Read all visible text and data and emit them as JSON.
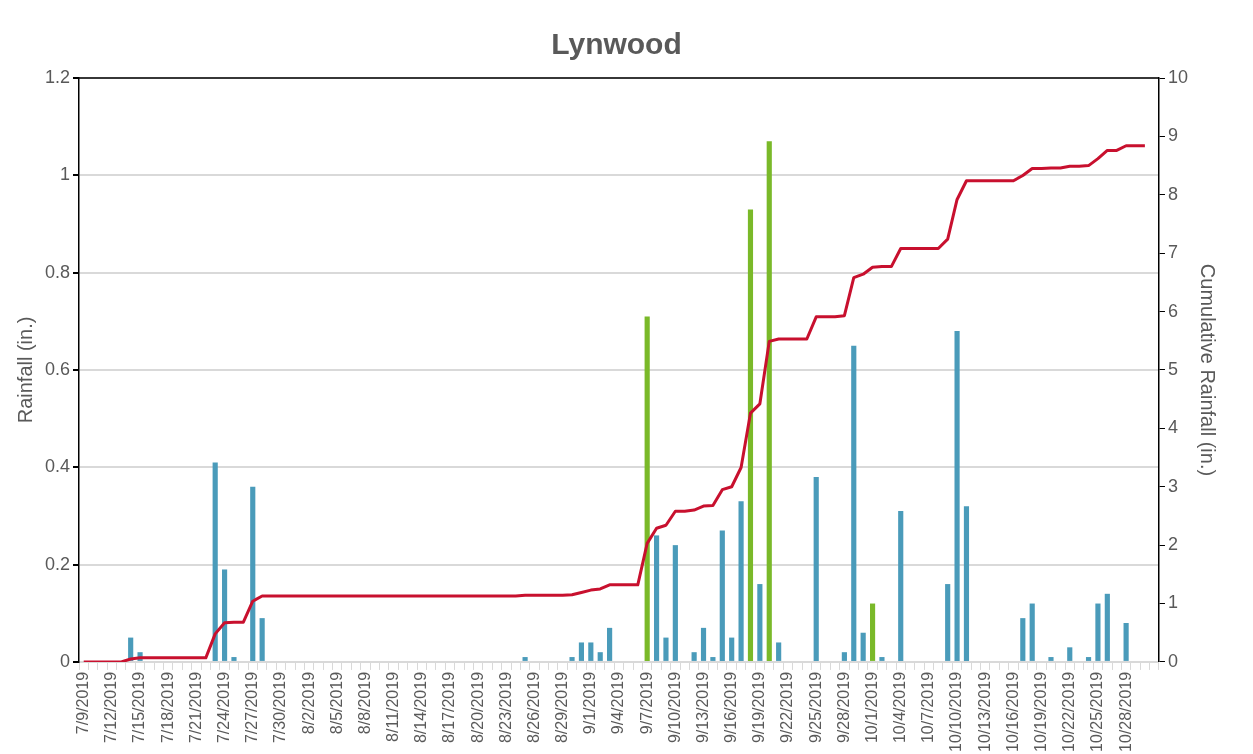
{
  "chart_data": {
    "type": "bar",
    "title": "Lynwood",
    "ylabel": "Rainfall (in.)",
    "y2label": "Cumulative Rainfall (in.)",
    "categories": [
      "7/9/2019",
      null,
      null,
      "7/12/2019",
      null,
      null,
      "7/15/2019",
      null,
      null,
      "7/18/2019",
      null,
      null,
      "7/21/2019",
      null,
      null,
      "7/24/2019",
      null,
      null,
      "7/27/2019",
      null,
      null,
      "7/30/2019",
      null,
      null,
      "8/2/2019",
      null,
      null,
      "8/5/2019",
      null,
      null,
      "8/8/2019",
      null,
      null,
      "8/11/2019",
      null,
      null,
      "8/14/2019",
      null,
      null,
      "8/17/2019",
      null,
      null,
      "8/20/2019",
      null,
      null,
      "8/23/2019",
      null,
      null,
      "8/26/2019",
      null,
      null,
      "8/29/2019",
      null,
      null,
      "9/1/2019",
      null,
      null,
      "9/4/2019",
      null,
      null,
      "9/7/2019",
      null,
      null,
      "9/10/2019",
      null,
      null,
      "9/13/2019",
      null,
      null,
      "9/16/2019",
      null,
      null,
      "9/19/2019",
      null,
      null,
      "9/22/2019",
      null,
      null,
      "9/25/2019",
      null,
      null,
      "9/28/2019",
      null,
      null,
      "10/1/2019",
      null,
      null,
      "10/4/2019",
      null,
      null,
      "10/7/2019",
      null,
      null,
      "10/10/2019",
      null,
      null,
      "10/13/2019",
      null,
      null,
      "10/16/2019",
      null,
      null,
      "10/19/2019",
      null,
      null,
      "10/22/2019",
      null,
      null,
      "10/25/2019",
      null,
      null,
      "10/28/2019",
      null,
      null,
      null
    ],
    "series": [
      {
        "colors": [
          "#4a9bba",
          "#4a9bba",
          "#4a9bba",
          "#4a9bba",
          "#4a9bba",
          "#4a9bba",
          "#4a9bba",
          "#4a9bba",
          "#4a9bba",
          "#4a9bba",
          "#4a9bba",
          "#4a9bba",
          "#4a9bba",
          "#4a9bba",
          "#4a9bba",
          "#4a9bba",
          "#4a9bba",
          "#4a9bba",
          "#4a9bba",
          "#4a9bba",
          "#4a9bba",
          "#4a9bba",
          "#4a9bba",
          "#4a9bba",
          "#4a9bba",
          "#4a9bba",
          "#4a9bba",
          "#4a9bba",
          "#4a9bba",
          "#4a9bba",
          "#4a9bba",
          "#4a9bba",
          "#4a9bba",
          "#4a9bba",
          "#4a9bba",
          "#4a9bba",
          "#4a9bba",
          "#4a9bba",
          "#4a9bba",
          "#4a9bba",
          "#4a9bba",
          "#4a9bba",
          "#4a9bba",
          "#4a9bba",
          "#4a9bba",
          "#4a9bba",
          "#4a9bba",
          "#4a9bba",
          "#4a9bba",
          "#4a9bba",
          "#4a9bba",
          "#4a9bba",
          "#4a9bba",
          "#4a9bba",
          "#4a9bba",
          "#4a9bba",
          "#4a9bba",
          "#4a9bba",
          "#4a9bba",
          "#4a9bba",
          "#7ab929",
          "#4a9bba",
          "#4a9bba",
          "#4a9bba",
          "#4a9bba",
          "#4a9bba",
          "#4a9bba",
          "#4a9bba",
          "#4a9bba",
          "#4a9bba",
          "#4a9bba",
          "#7ab929",
          "#4a9bba",
          "#7ab929",
          "#4a9bba",
          "#4a9bba",
          "#4a9bba",
          "#4a9bba",
          "#4a9bba",
          "#4a9bba",
          "#4a9bba",
          "#4a9bba",
          "#4a9bba",
          "#4a9bba",
          "#7ab929",
          "#4a9bba",
          "#4a9bba",
          "#4a9bba",
          "#4a9bba",
          "#4a9bba",
          "#4a9bba",
          "#4a9bba",
          "#4a9bba",
          "#4a9bba",
          "#4a9bba",
          "#4a9bba",
          "#4a9bba",
          "#4a9bba",
          "#4a9bba",
          "#4a9bba",
          "#4a9bba",
          "#4a9bba",
          "#4a9bba",
          "#4a9bba",
          "#4a9bba",
          "#4a9bba",
          "#4a9bba",
          "#4a9bba",
          "#4a9bba",
          "#4a9bba",
          "#4a9bba",
          "#4a9bba",
          "#4a9bba",
          "#4a9bba",
          "#4a9bba"
        ],
        "values": [
          0,
          0,
          0,
          0,
          0,
          0.05,
          0.02,
          0,
          0,
          0,
          0,
          0,
          0,
          0,
          0.41,
          0.19,
          0.01,
          0,
          0.36,
          0.09,
          0,
          0,
          0,
          0,
          0,
          0,
          0,
          0,
          0,
          0,
          0,
          0,
          0,
          0,
          0,
          0,
          0,
          0,
          0,
          0,
          0,
          0,
          0,
          0,
          0,
          0,
          0,
          0.01,
          0,
          0,
          0,
          0,
          0.01,
          0.04,
          0.04,
          0.02,
          0.07,
          0,
          0,
          0,
          0.71,
          0.26,
          0.05,
          0.24,
          0,
          0.02,
          0.07,
          0.01,
          0.27,
          0.05,
          0.33,
          0.93,
          0.16,
          1.07,
          0.04,
          0,
          0,
          0,
          0.38,
          0,
          0,
          0.02,
          0.65,
          0.06,
          0.12,
          0.01,
          0,
          0.31,
          0,
          0,
          0,
          0,
          0.16,
          0.68,
          0.32,
          0,
          0,
          0,
          0,
          0,
          0.09,
          0.12,
          0,
          0.01,
          0,
          0.03,
          0,
          0.01,
          0.12,
          0.14,
          0,
          0.08,
          0,
          0,
          null
        ]
      },
      {
        "type": "line",
        "axis": "y2",
        "color": "#c8102e",
        "values": [
          0,
          0,
          0,
          0,
          0,
          0.05,
          0.07,
          0.07,
          0.07,
          0.07,
          0.07,
          0.07,
          0.07,
          0.07,
          0.48,
          0.67,
          0.68,
          0.68,
          1.04,
          1.13,
          1.13,
          1.13,
          1.13,
          1.13,
          1.13,
          1.13,
          1.13,
          1.13,
          1.13,
          1.13,
          1.13,
          1.13,
          1.13,
          1.13,
          1.13,
          1.13,
          1.13,
          1.13,
          1.13,
          1.13,
          1.13,
          1.13,
          1.13,
          1.13,
          1.13,
          1.13,
          1.13,
          1.14,
          1.14,
          1.14,
          1.14,
          1.14,
          1.15,
          1.19,
          1.23,
          1.25,
          1.32,
          1.32,
          1.32,
          1.32,
          2.03,
          2.29,
          2.34,
          2.58,
          2.58,
          2.6,
          2.67,
          2.68,
          2.95,
          3.0,
          3.33,
          4.26,
          4.42,
          5.49,
          5.53,
          5.53,
          5.53,
          5.53,
          5.91,
          5.91,
          5.91,
          5.93,
          6.58,
          6.64,
          6.76,
          6.77,
          6.77,
          7.08,
          7.08,
          7.08,
          7.08,
          7.08,
          7.24,
          7.92,
          8.24,
          8.24,
          8.24,
          8.24,
          8.24,
          8.24,
          8.33,
          8.45,
          8.45,
          8.46,
          8.46,
          8.49,
          8.49,
          8.5,
          8.62,
          8.76,
          8.76,
          8.84,
          8.84,
          8.84,
          null
        ]
      }
    ],
    "ylim": [
      0,
      1.2
    ],
    "yticks": [
      0,
      0.2,
      0.4,
      0.6,
      0.8,
      1,
      1.2
    ],
    "y2lim": [
      0,
      10
    ],
    "y2ticks": [
      0,
      1,
      2,
      3,
      4,
      5,
      6,
      7,
      8,
      9,
      10
    ],
    "grid": "y",
    "legend": false,
    "marker": "none"
  }
}
